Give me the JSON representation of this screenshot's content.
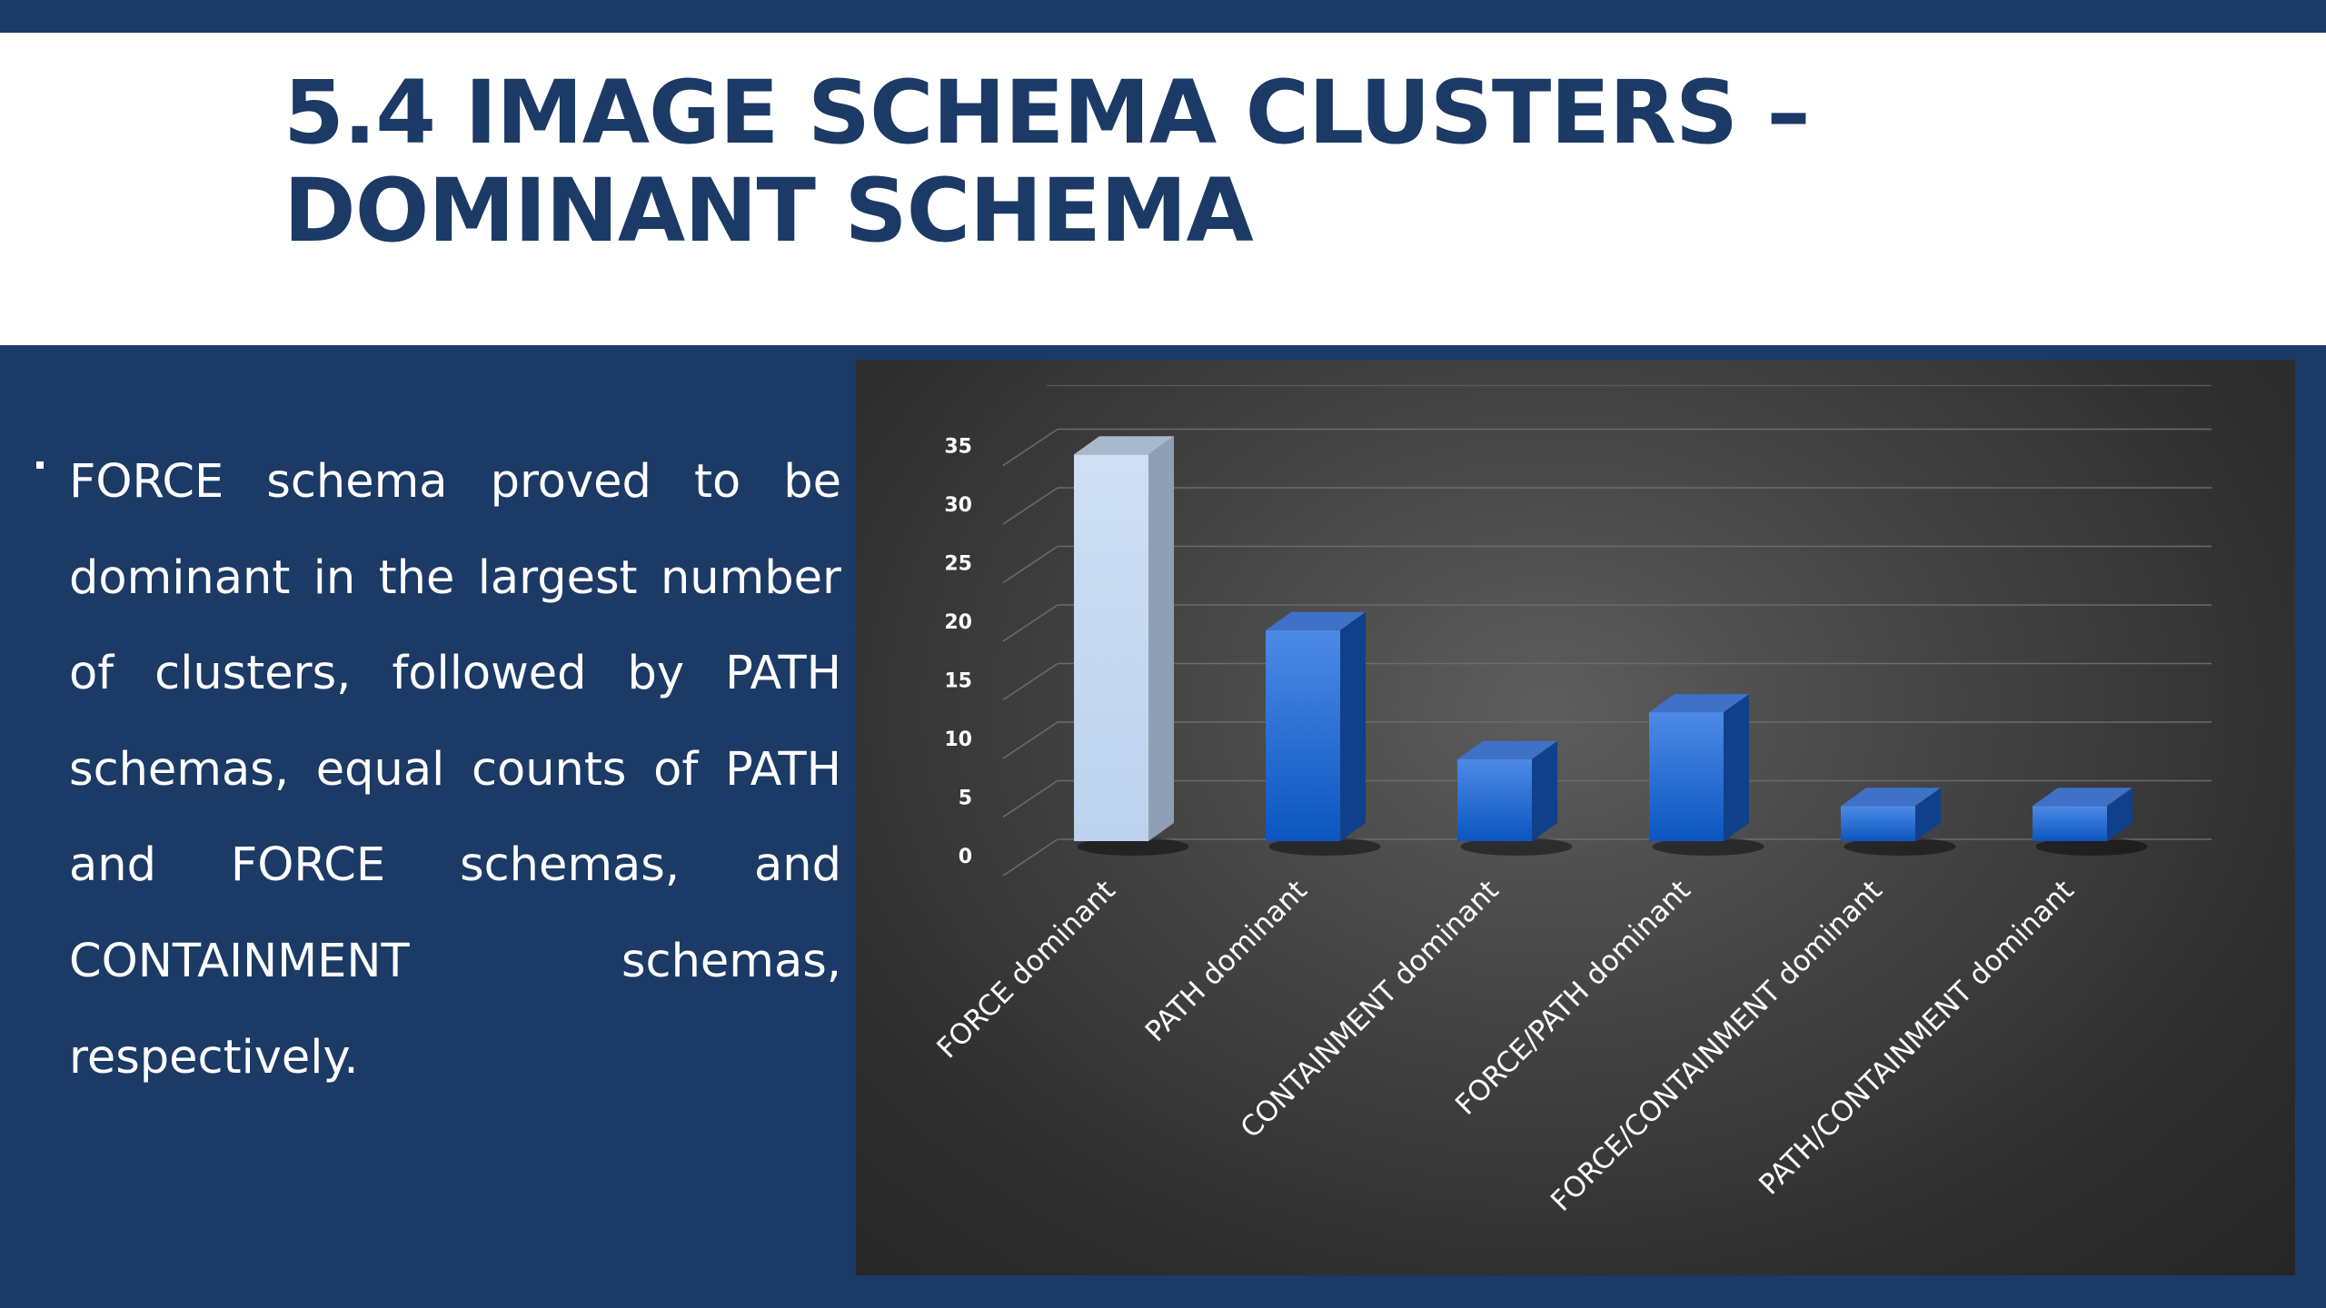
{
  "slide": {
    "title": "5.4 IMAGE SCHEMA CLUSTERS – DOMINANT SCHEMA",
    "bullet": "FORCE schema proved to be dominant in the largest number of clusters, followed by PATH schemas, equal counts of PATH and FORCE schemas, and CONTAINMENT schemas, respectively."
  },
  "colors": {
    "navy": "#1b3a66",
    "highlight_bar": "#c6daf2",
    "bar_blue": "#1f6bd0"
  },
  "chart_data": {
    "type": "bar",
    "style": "3d-column",
    "categories": [
      "FORCE dominant",
      "PATH dominant",
      "CONTAINMENT dominant",
      "FORCE/PATH dominant",
      "FORCE/CONTAINMENT dominant",
      "PATH/CONTAINMENT dominant"
    ],
    "values": [
      33,
      18,
      7,
      11,
      3,
      3
    ],
    "highlighted_index": 0,
    "ylim": [
      0,
      35
    ],
    "yticks": [
      "0",
      "5",
      "10",
      "15",
      "20",
      "25",
      "30",
      "35"
    ],
    "grid": true,
    "title": "",
    "xlabel": "",
    "ylabel": ""
  }
}
